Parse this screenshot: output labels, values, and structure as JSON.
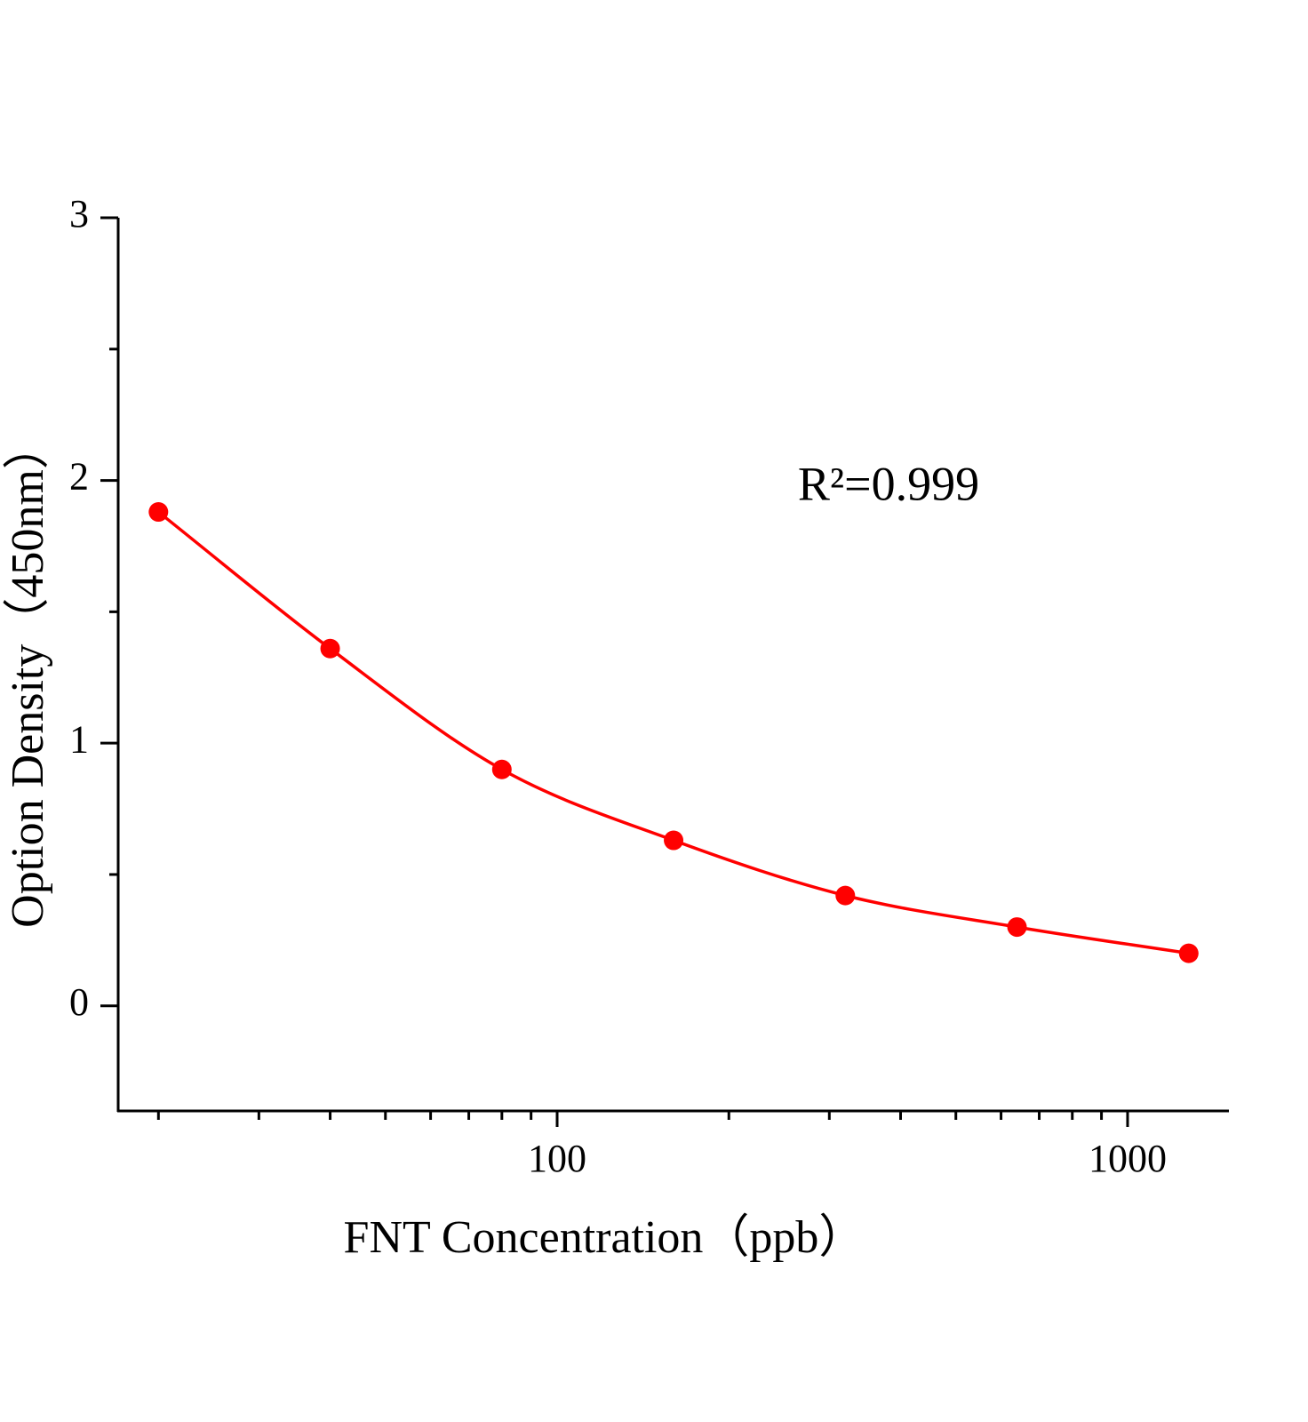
{
  "chart_data": {
    "type": "scatter",
    "x_label": "FNT Concentration（ppb）",
    "y_label": "Option Density（450nm）",
    "annotation": "R²=0.999",
    "x": [
      20,
      40,
      80,
      160,
      320,
      640,
      1280
    ],
    "series": [
      {
        "color": "#ff0000",
        "values": [
          1.88,
          1.36,
          0.9,
          0.63,
          0.42,
          0.3,
          0.2
        ]
      }
    ],
    "xlog": true,
    "xlim": [
      17,
      1500
    ],
    "xticks": [
      100,
      1000
    ],
    "xminorticks": [
      20,
      30,
      40,
      50,
      60,
      70,
      80,
      90,
      200,
      300,
      400,
      500,
      600,
      700,
      800,
      900
    ],
    "ylim": [
      -0.4,
      3
    ],
    "yticks": [
      0,
      1,
      2,
      3
    ],
    "yminorticks": [
      0.5,
      1.5,
      2.5
    ],
    "fit_line": true
  }
}
